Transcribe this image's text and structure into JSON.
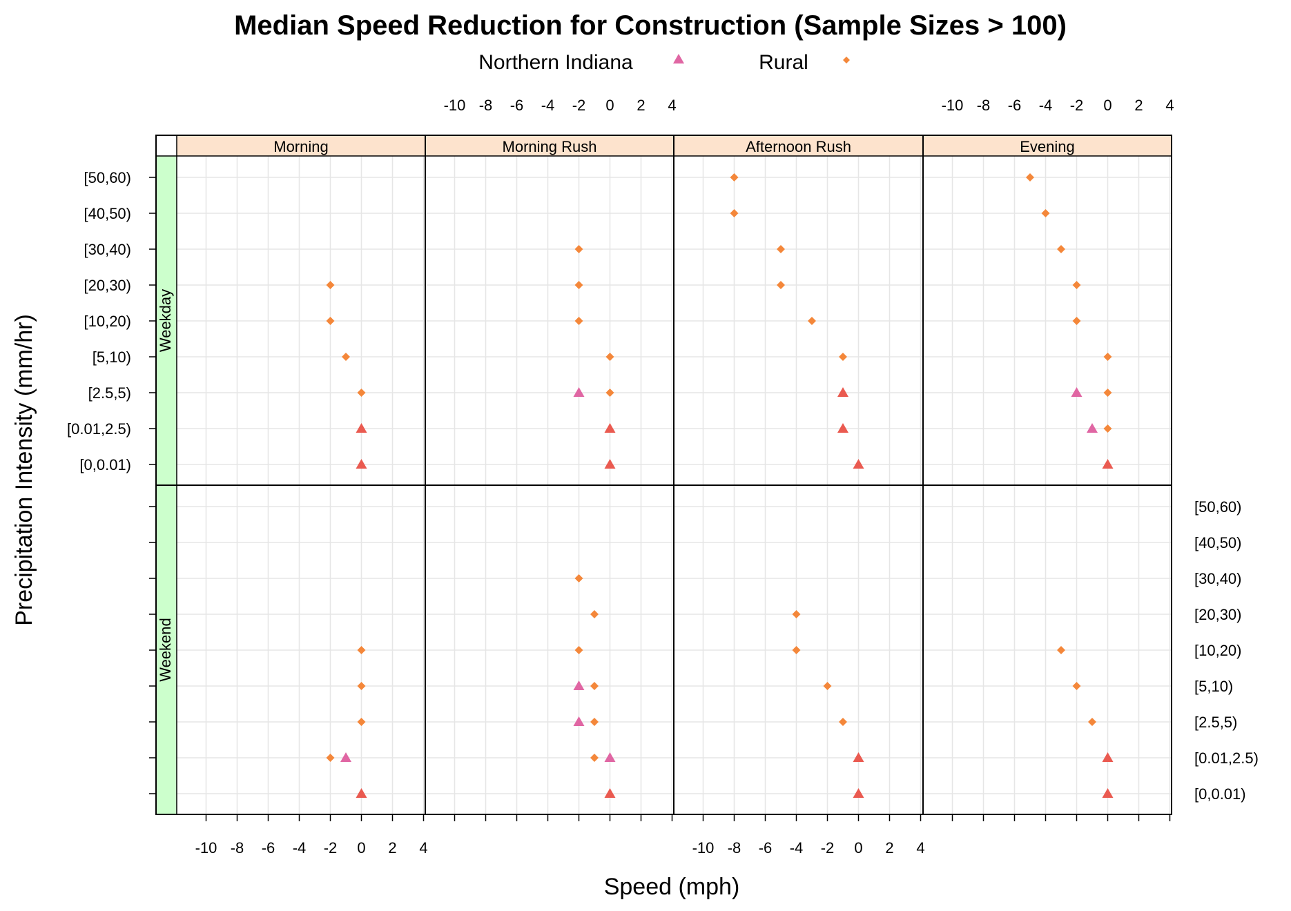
{
  "chart_data": {
    "type": "scatter",
    "title": "Median Speed Reduction for Construction (Sample Sizes > 100)",
    "xlabel": "Speed (mph)",
    "ylabel": "Precipitation Intensity (mm/hr)",
    "xlim": [
      -11,
      5
    ],
    "x_ticks": [
      -10,
      -8,
      -6,
      -4,
      -2,
      0,
      2,
      4
    ],
    "y_categories": [
      "[0,0.01)",
      "[0.01,2.5)",
      "[2.5,5)",
      "[5,10)",
      "[10,20)",
      "[20,30)",
      "[30,40)",
      "[40,50)",
      "[50,60)"
    ],
    "columns": [
      "Morning",
      "Morning Rush",
      "Afternoon Rush",
      "Evening"
    ],
    "rows": [
      "Weekday",
      "Weekend"
    ],
    "legend": [
      {
        "name": "Northern Indiana",
        "shape": "triangle",
        "color": "#e066a3"
      },
      {
        "name": "Rural",
        "shape": "diamond",
        "color": "#f4873a"
      }
    ],
    "legend_placement": "top",
    "grid": true,
    "overlap_color": "#ea5a50",
    "strip_colors": {
      "column": "#fde3cd",
      "row": "#ccffcc"
    },
    "panels": [
      {
        "column": "Morning",
        "row": "Weekday",
        "Northern Indiana": {
          "[0,0.01)": 0,
          "[0.01,2.5)": 0
        },
        "Rural": {
          "[0,0.01)": 0,
          "[0.01,2.5)": 0,
          "[2.5,5)": 0,
          "[5,10)": -1,
          "[10,20)": -2,
          "[20,30)": -2
        }
      },
      {
        "column": "Morning Rush",
        "row": "Weekday",
        "Northern Indiana": {
          "[0,0.01)": 0,
          "[0.01,2.5)": 0,
          "[2.5,5)": -2
        },
        "Rural": {
          "[0,0.01)": 0,
          "[0.01,2.5)": 0,
          "[2.5,5)": 0,
          "[5,10)": 0,
          "[10,20)": -2,
          "[20,30)": -2,
          "[30,40)": -2
        }
      },
      {
        "column": "Afternoon Rush",
        "row": "Weekday",
        "Northern Indiana": {
          "[0,0.01)": 0,
          "[0.01,2.5)": -1,
          "[2.5,5)": -1
        },
        "Rural": {
          "[0,0.01)": 0,
          "[0.01,2.5)": -1,
          "[2.5,5)": -1,
          "[5,10)": -1,
          "[10,20)": -3,
          "[20,30)": -5,
          "[30,40)": -5,
          "[40,50)": -8,
          "[50,60)": -8
        }
      },
      {
        "column": "Evening",
        "row": "Weekday",
        "Northern Indiana": {
          "[0,0.01)": 0,
          "[0.01,2.5)": -1,
          "[2.5,5)": -2
        },
        "Rural": {
          "[0,0.01)": 0,
          "[0.01,2.5)": 0,
          "[2.5,5)": 0,
          "[5,10)": 0,
          "[10,20)": -2,
          "[20,30)": -2,
          "[30,40)": -3,
          "[40,50)": -4,
          "[50,60)": -5
        }
      },
      {
        "column": "Morning",
        "row": "Weekend",
        "Northern Indiana": {
          "[0,0.01)": 0,
          "[0.01,2.5)": -1
        },
        "Rural": {
          "[0,0.01)": 0,
          "[0.01,2.5)": -2,
          "[2.5,5)": 0,
          "[5,10)": 0,
          "[10,20)": 0
        }
      },
      {
        "column": "Morning Rush",
        "row": "Weekend",
        "Northern Indiana": {
          "[0,0.01)": 0,
          "[0.01,2.5)": 0,
          "[2.5,5)": -2,
          "[5,10)": -2
        },
        "Rural": {
          "[0,0.01)": 0,
          "[0.01,2.5)": -1,
          "[2.5,5)": -1,
          "[5,10)": -1,
          "[10,20)": -2,
          "[20,30)": -1,
          "[30,40)": -2
        }
      },
      {
        "column": "Afternoon Rush",
        "row": "Weekend",
        "Northern Indiana": {
          "[0,0.01)": 0,
          "[0.01,2.5)": 0
        },
        "Rural": {
          "[0,0.01)": 0,
          "[0.01,2.5)": 0,
          "[2.5,5)": -1,
          "[5,10)": -2,
          "[10,20)": -4,
          "[20,30)": -4
        }
      },
      {
        "column": "Evening",
        "row": "Weekend",
        "Northern Indiana": {
          "[0,0.01)": 0,
          "[0.01,2.5)": 0
        },
        "Rural": {
          "[0,0.01)": 0,
          "[0.01,2.5)": 0,
          "[2.5,5)": -1,
          "[5,10)": -2,
          "[10,20)": -3
        }
      }
    ]
  }
}
